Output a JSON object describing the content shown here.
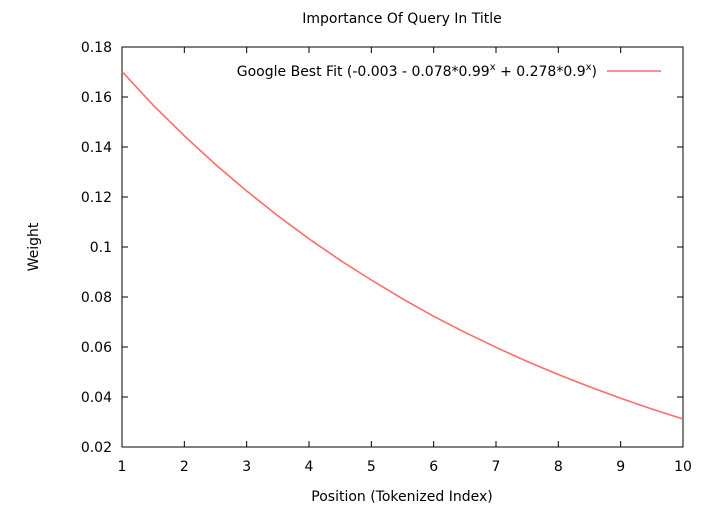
{
  "chart_data": {
    "type": "line",
    "title": "Importance Of Query In Title",
    "xlabel": "Position (Tokenized Index)",
    "ylabel": "Weight",
    "xlim": [
      1,
      10
    ],
    "ylim": [
      0.02,
      0.18
    ],
    "xticks": [
      "1",
      "2",
      "3",
      "4",
      "5",
      "6",
      "7",
      "8",
      "9",
      "10"
    ],
    "yticks": [
      "0.02",
      "0.04",
      "0.06",
      "0.08",
      "0.1",
      "0.12",
      "0.14",
      "0.16",
      "0.18"
    ],
    "grid": false,
    "legend_position": "top-right",
    "series": [
      {
        "name_parts": {
          "before": "Google Best Fit (-0.003 - 0.078*0.99",
          "sup1": "x",
          "mid": " + 0.278*0.9",
          "sup2": "x",
          "after": ")"
        },
        "color": "#ff6b6b",
        "x": [
          1,
          1.5,
          2,
          2.5,
          3,
          3.5,
          4,
          4.5,
          5,
          5.5,
          6,
          6.5,
          7,
          7.5,
          8,
          8.5,
          9,
          9.5,
          10
        ],
        "y": [
          0.1702,
          0.1567,
          0.1445,
          0.133,
          0.1224,
          0.1125,
          0.1033,
          0.0947,
          0.0868,
          0.0793,
          0.0723,
          0.0659,
          0.0599,
          0.0542,
          0.049,
          0.0441,
          0.0395,
          0.0352,
          0.0312
        ]
      }
    ]
  }
}
